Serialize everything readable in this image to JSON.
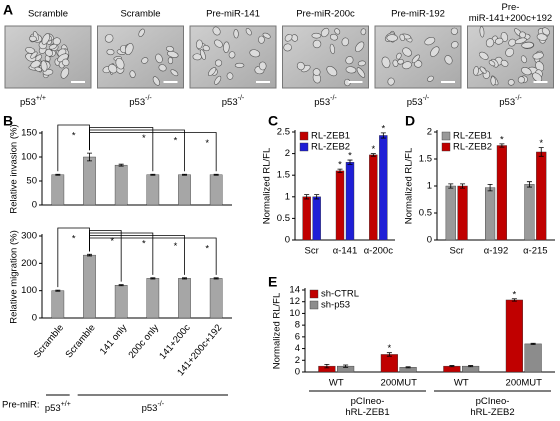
{
  "images": [
    {
      "title": "Scramble",
      "genotype": {
        "base": "p53",
        "sup": "+/+"
      }
    },
    {
      "title": "Scramble",
      "genotype": {
        "base": "p53",
        "sup": "-/-"
      }
    },
    {
      "title": "Pre-miR-141",
      "genotype": {
        "base": "p53",
        "sup": "-/-"
      }
    },
    {
      "title": "Pre-miR-200c",
      "genotype": {
        "base": "p53",
        "sup": "-/-"
      }
    },
    {
      "title": "Pre-miR-192",
      "genotype": {
        "base": "p53",
        "sup": "-/-"
      }
    },
    {
      "title": "Pre-miR-141+200c+192",
      "genotype": {
        "base": "p53",
        "sup": "-/-"
      }
    }
  ],
  "images_panel": "A",
  "chart_data": [
    {
      "type": "bar",
      "panel": "B",
      "ylabel": "Relative invasion (%)",
      "categories": [
        null,
        null,
        null,
        null,
        null,
        null
      ],
      "series": [
        {
          "color": "#a6a6a6",
          "values": [
            63,
            100,
            83,
            63,
            63,
            63
          ],
          "errors": [
            1,
            8,
            2,
            1,
            1,
            1
          ]
        }
      ],
      "ylim": [
        0,
        150
      ],
      "yticks": [
        0,
        50,
        100,
        150
      ],
      "bracket_origin": 1,
      "annotations": [
        {
          "index": 0,
          "text": "*"
        },
        {
          "index": 3,
          "text": "*"
        },
        {
          "index": 4,
          "text": "*"
        },
        {
          "index": 5,
          "text": "*"
        }
      ]
    },
    {
      "type": "bar",
      "ylabel": "Relative migration (%)",
      "categories": [
        "Scramble",
        "Scramble",
        "141 only",
        "200c only",
        "141+200c",
        "141+200c+192"
      ],
      "series": [
        {
          "color": "#a6a6a6",
          "values": [
            100,
            230,
            120,
            145,
            145,
            145
          ],
          "errors": [
            2,
            3,
            2,
            2,
            2,
            2
          ]
        }
      ],
      "ylim": [
        0,
        300
      ],
      "yticks": [
        0,
        100,
        200,
        300
      ],
      "bracket_origin": 1,
      "annotations": [
        {
          "index": 0,
          "text": "*"
        },
        {
          "index": 2,
          "text": "*"
        },
        {
          "index": 3,
          "text": "*"
        },
        {
          "index": 4,
          "text": "*"
        },
        {
          "index": 5,
          "text": "*"
        }
      ],
      "row_label": "Pre-miR:",
      "groups": [
        {
          "base": "p53",
          "sup": "+/+",
          "span": [
            0,
            0
          ]
        },
        {
          "base": "p53",
          "sup": "-/-",
          "span": [
            1,
            5
          ]
        }
      ]
    },
    {
      "type": "bar",
      "panel": "C",
      "ylabel": "Normalized RL/FL",
      "categories": [
        "Scr",
        "α-141",
        "α-200c"
      ],
      "series": [
        {
          "name": "RL-ZEB1",
          "color": "#c00000",
          "values": [
            1,
            1.6,
            1.97
          ],
          "errors": [
            0.05,
            0.04,
            0.03
          ]
        },
        {
          "name": "RL-ZEB2",
          "color": "#1f1fd6",
          "values": [
            1,
            1.8,
            2.42
          ],
          "errors": [
            0.05,
            0.05,
            0.06
          ]
        }
      ],
      "ylim": [
        0,
        2.5
      ],
      "yticks": [
        0,
        0.5,
        1,
        1.5,
        2,
        2.5
      ],
      "annotations": [
        {
          "series": 0,
          "index": 1,
          "text": "*"
        },
        {
          "series": 1,
          "index": 1,
          "text": "*"
        },
        {
          "series": 0,
          "index": 2,
          "text": "*"
        },
        {
          "series": 1,
          "index": 2,
          "text": "*"
        }
      ]
    },
    {
      "type": "bar",
      "panel": "D",
      "ylabel": "Normalized RL/FL",
      "categories": [
        "Scr",
        "α-192",
        "α-215"
      ],
      "series": [
        {
          "name": "RL-ZEB1",
          "color": "#9a9a9a",
          "values": [
            1,
            0.97,
            1.03
          ],
          "errors": [
            0.04,
            0.06,
            0.05
          ]
        },
        {
          "name": "RL-ZEB2",
          "color": "#c00000",
          "values": [
            1,
            1.75,
            1.63
          ],
          "errors": [
            0.04,
            0.03,
            0.08
          ]
        }
      ],
      "ylim": [
        0,
        2
      ],
      "yticks": [
        0,
        0.5,
        1,
        1.5,
        2
      ],
      "annotations": [
        {
          "series": 1,
          "index": 1,
          "text": "*"
        },
        {
          "series": 1,
          "index": 2,
          "text": "*"
        }
      ]
    },
    {
      "type": "bar",
      "panel": "E",
      "ylabel": "Normalized RL/FL",
      "categories": [
        "WT",
        "200MUT",
        "WT",
        "200MUT"
      ],
      "series": [
        {
          "name": "sh-CTRL",
          "color": "#c00000",
          "values": [
            1,
            3,
            1,
            12.3
          ],
          "errors": [
            0.3,
            0.3,
            0.1,
            0.2
          ]
        },
        {
          "name": "sh-p53",
          "color": "#8c8c8c",
          "values": [
            1,
            0.8,
            1,
            4.8
          ],
          "errors": [
            0.2,
            0.1,
            0.1,
            0.1
          ]
        }
      ],
      "ylim": [
        0,
        14
      ],
      "yticks": [
        0,
        2,
        4,
        6,
        8,
        10,
        12,
        14
      ],
      "annotations": [
        {
          "series": 0,
          "index": 1,
          "text": "*"
        },
        {
          "series": 0,
          "index": 3,
          "text": "*"
        }
      ],
      "groups": [
        {
          "label": "pCIneo-hRL-ZEB1",
          "span": [
            0,
            1
          ]
        },
        {
          "label": "pCIneo-hRL-ZEB2",
          "span": [
            2,
            3
          ]
        }
      ]
    }
  ]
}
